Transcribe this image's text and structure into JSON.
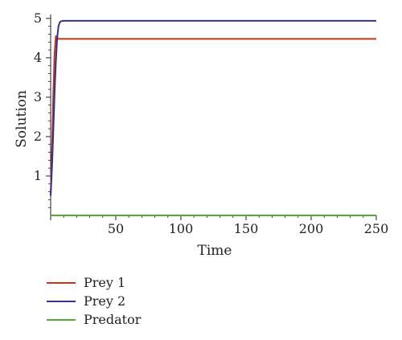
{
  "chart_data": {
    "type": "line",
    "title": "",
    "xlabel": "Time",
    "ylabel": "Solution",
    "xlim": [
      0,
      250
    ],
    "ylim": [
      0,
      5.1
    ],
    "xticks": [
      50,
      100,
      150,
      200,
      250
    ],
    "yticks": [
      1,
      2,
      3,
      4,
      5
    ],
    "grid": false,
    "legend_position": "bottom-left",
    "series": [
      {
        "name": "Prey 1",
        "color": "#cc3311",
        "x": [
          0,
          1,
          2,
          3,
          4,
          5,
          6,
          8,
          10,
          15,
          20,
          50,
          100,
          150,
          200,
          250
        ],
        "y": [
          0.5,
          1.6,
          3.0,
          4.1,
          4.55,
          4.5,
          4.48,
          4.48,
          4.48,
          4.48,
          4.48,
          4.48,
          4.48,
          4.48,
          4.48,
          4.48
        ]
      },
      {
        "name": "Prey 2",
        "color": "#33338e",
        "x": [
          0,
          1,
          2,
          3,
          4,
          5,
          6,
          7,
          8,
          10,
          15,
          20,
          50,
          100,
          150,
          200,
          250
        ],
        "y": [
          0.5,
          1.2,
          2.1,
          3.1,
          3.9,
          4.5,
          4.8,
          4.9,
          4.93,
          4.94,
          4.94,
          4.94,
          4.94,
          4.94,
          4.94,
          4.94,
          4.94
        ]
      },
      {
        "name": "Predator",
        "color": "#55aa33",
        "x": [
          0,
          5,
          10,
          50,
          100,
          150,
          200,
          250
        ],
        "y": [
          0,
          0,
          0,
          0,
          0,
          0,
          0,
          0
        ]
      }
    ]
  }
}
